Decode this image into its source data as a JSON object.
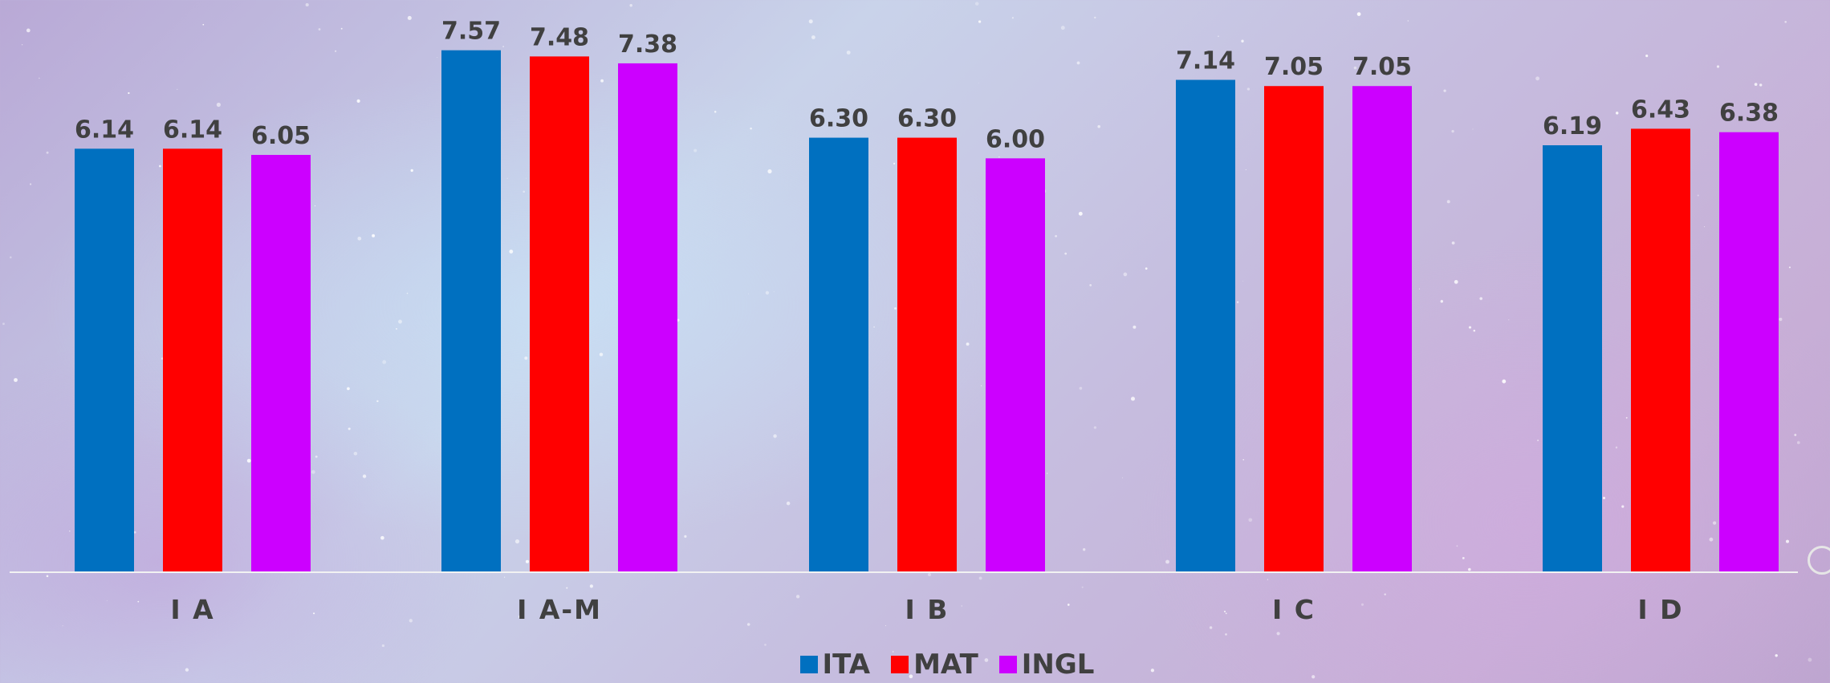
{
  "chart_data": {
    "type": "bar",
    "categories": [
      "I A",
      "I A-M",
      "I B",
      "I C",
      "I D"
    ],
    "series": [
      {
        "name": "ITA",
        "color": "#0070c0",
        "values": [
          6.14,
          7.57,
          6.3,
          7.14,
          6.19
        ],
        "labels": [
          "6.14",
          "7.57",
          "6.30",
          "7.14",
          "6.19"
        ]
      },
      {
        "name": "MAT",
        "color": "#ff0000",
        "values": [
          6.14,
          7.48,
          6.3,
          7.05,
          6.43
        ],
        "labels": [
          "6.14",
          "7.48",
          "6.30",
          "7.05",
          "6.43"
        ]
      },
      {
        "name": "INGL",
        "color": "#cc00ff",
        "values": [
          6.05,
          7.38,
          6.0,
          7.05,
          6.38
        ],
        "labels": [
          "6.05",
          "7.38",
          "6.00",
          "7.05",
          "6.38"
        ]
      }
    ],
    "ylim": [
      0,
      8.3
    ],
    "grid": false,
    "legend_position": "bottom",
    "title": "",
    "xlabel": "",
    "ylabel": ""
  }
}
